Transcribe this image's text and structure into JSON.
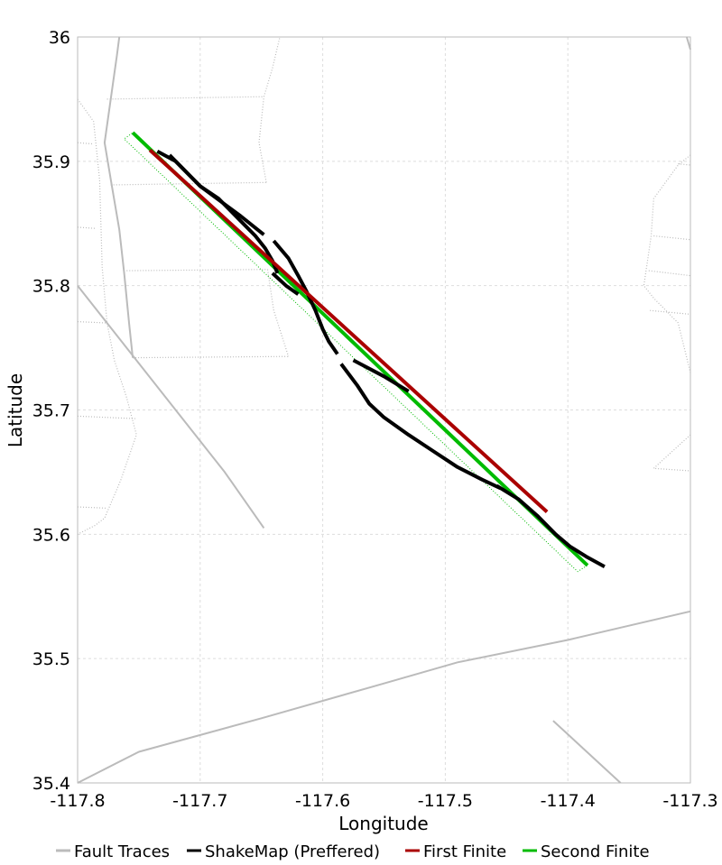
{
  "chart_data": {
    "type": "line",
    "title": "",
    "xlabel": "Longitude",
    "ylabel": "Latitude",
    "xlim": [
      -117.8,
      -117.3
    ],
    "ylim": [
      35.4,
      36.0
    ],
    "xticks": [
      -117.8,
      -117.7,
      -117.6,
      -117.5,
      -117.4,
      -117.3
    ],
    "yticks": [
      35.4,
      35.5,
      35.6,
      35.7,
      35.8,
      35.9,
      36.0
    ],
    "xtick_labels": [
      "-117.8",
      "-117.7",
      "-117.6",
      "-117.5",
      "-117.4",
      "-117.3"
    ],
    "ytick_labels": [
      "35.4",
      "35.5",
      "35.6",
      "35.7",
      "35.8",
      "35.9",
      "36"
    ],
    "grid": true,
    "legend_position": "bottom",
    "legend": [
      {
        "name": "Fault Traces",
        "color": "#bbbbbb"
      },
      {
        "name": "ShakeMap (Preffered)",
        "color": "#000000"
      },
      {
        "name": "First Finite",
        "color": "#aa0000"
      },
      {
        "name": "Second Finite",
        "color": "#00bb00"
      }
    ],
    "series": [
      {
        "key": "fault_traces",
        "color": "#bbbbbb",
        "segments": [
          [
            [
              -117.766,
              36.0
            ],
            [
              -117.768,
              35.985
            ],
            [
              -117.778,
              35.915
            ],
            [
              -117.772,
              35.88
            ],
            [
              -117.766,
              35.845
            ],
            [
              -117.762,
              35.81
            ],
            [
              -117.758,
              35.77
            ],
            [
              -117.755,
              35.742
            ]
          ],
          [
            [
              -117.8,
              35.8
            ],
            [
              -117.76,
              35.75
            ],
            [
              -117.72,
              35.7
            ],
            [
              -117.68,
              35.65
            ],
            [
              -117.648,
              35.605
            ]
          ],
          [
            [
              -117.8,
              35.4
            ],
            [
              -117.75,
              35.425
            ],
            [
              -117.65,
              35.452
            ],
            [
              -117.55,
              35.48
            ],
            [
              -117.49,
              35.497
            ],
            [
              -117.4,
              35.515
            ],
            [
              -117.3,
              35.538
            ]
          ],
          [
            [
              -117.412,
              35.45
            ],
            [
              -117.357,
              35.4
            ]
          ],
          [
            [
              -117.303,
              36.0
            ],
            [
              -117.3,
              35.99
            ]
          ]
        ]
      },
      {
        "key": "fault_traces_minor",
        "color": "#bbbbbb",
        "segments": [
          [
            [
              -117.8,
              35.95
            ],
            [
              -117.787,
              35.932
            ],
            [
              -117.782,
              35.885
            ],
            [
              -117.78,
              35.815
            ],
            [
              -117.776,
              35.77
            ],
            [
              -117.77,
              35.74
            ],
            [
              -117.76,
              35.71
            ],
            [
              -117.752,
              35.68
            ],
            [
              -117.765,
              35.643
            ],
            [
              -117.778,
              35.613
            ],
            [
              -117.786,
              35.607
            ],
            [
              -117.8,
              35.6
            ]
          ],
          [
            [
              -117.8,
              35.915
            ],
            [
              -117.788,
              35.914
            ]
          ],
          [
            [
              -117.8,
              35.847
            ],
            [
              -117.785,
              35.846
            ]
          ],
          [
            [
              -117.8,
              35.771
            ],
            [
              -117.777,
              35.77
            ]
          ],
          [
            [
              -117.8,
              35.695
            ],
            [
              -117.753,
              35.693
            ]
          ],
          [
            [
              -117.8,
              35.622
            ],
            [
              -117.776,
              35.621
            ]
          ],
          [
            [
              -117.776,
              35.95
            ],
            [
              -117.648,
              35.952
            ]
          ],
          [
            [
              -117.773,
              35.881
            ],
            [
              -117.646,
              35.883
            ]
          ],
          [
            [
              -117.76,
              35.812
            ],
            [
              -117.645,
              35.813
            ]
          ],
          [
            [
              -117.755,
              35.742
            ],
            [
              -117.628,
              35.743
            ]
          ],
          [
            [
              -117.648,
              35.952
            ],
            [
              -117.641,
              35.975
            ],
            [
              -117.635,
              36.0
            ]
          ],
          [
            [
              -117.646,
              35.883
            ],
            [
              -117.652,
              35.915
            ],
            [
              -117.648,
              35.952
            ]
          ],
          [
            [
              -117.645,
              35.813
            ],
            [
              -117.64,
              35.78
            ],
            [
              -117.628,
              35.743
            ]
          ],
          [
            [
              -117.3,
              35.905
            ],
            [
              -117.31,
              35.897
            ],
            [
              -117.33,
              35.87
            ],
            [
              -117.332,
              35.84
            ],
            [
              -117.335,
              35.82
            ],
            [
              -117.338,
              35.8
            ],
            [
              -117.33,
              35.79
            ],
            [
              -117.31,
              35.77
            ],
            [
              -117.305,
              35.75
            ],
            [
              -117.3,
              35.73
            ]
          ],
          [
            [
              -117.33,
              35.84
            ],
            [
              -117.3,
              35.837
            ]
          ],
          [
            [
              -117.334,
              35.812
            ],
            [
              -117.3,
              35.808
            ]
          ],
          [
            [
              -117.333,
              35.78
            ],
            [
              -117.3,
              35.777
            ]
          ],
          [
            [
              -117.31,
              35.898
            ],
            [
              -117.3,
              35.897
            ]
          ],
          [
            [
              -117.3,
              35.68
            ],
            [
              -117.33,
              35.653
            ],
            [
              -117.3,
              35.651
            ]
          ]
        ]
      },
      {
        "key": "shakemap",
        "name": "ShakeMap (Preffered)",
        "color": "#000000",
        "segments": [
          [
            [
              -117.735,
              35.908
            ],
            [
              -117.72,
              35.9
            ],
            [
              -117.71,
              35.89
            ],
            [
              -117.7,
              35.88
            ],
            [
              -117.685,
              35.87
            ],
            [
              -117.675,
              35.86
            ],
            [
              -117.665,
              35.85
            ],
            [
              -117.655,
              35.84
            ],
            [
              -117.647,
              35.83
            ],
            [
              -117.641,
              35.82
            ],
            [
              -117.637,
              35.81
            ]
          ],
          [
            [
              -117.725,
              35.905
            ],
            [
              -117.7,
              35.88
            ],
            [
              -117.667,
              35.856
            ],
            [
              -117.648,
              35.841
            ]
          ],
          [
            [
              -117.64,
              35.836
            ],
            [
              -117.628,
              35.822
            ],
            [
              -117.62,
              35.808
            ],
            [
              -117.613,
              35.795
            ],
            [
              -117.606,
              35.78
            ],
            [
              -117.6,
              35.765
            ],
            [
              -117.595,
              35.755
            ],
            [
              -117.588,
              35.745
            ]
          ],
          [
            [
              -117.641,
              35.81
            ],
            [
              -117.63,
              35.8
            ],
            [
              -117.62,
              35.793
            ]
          ],
          [
            [
              -117.585,
              35.737
            ],
            [
              -117.572,
              35.72
            ],
            [
              -117.562,
              35.705
            ],
            [
              -117.55,
              35.694
            ],
            [
              -117.53,
              35.68
            ],
            [
              -117.51,
              35.667
            ],
            [
              -117.49,
              35.654
            ],
            [
              -117.47,
              35.644
            ],
            [
              -117.455,
              35.637
            ]
          ],
          [
            [
              -117.575,
              35.74
            ],
            [
              -117.55,
              35.727
            ],
            [
              -117.53,
              35.715
            ]
          ],
          [
            [
              -117.458,
              35.639
            ],
            [
              -117.44,
              35.628
            ],
            [
              -117.425,
              35.615
            ],
            [
              -117.41,
              35.6
            ],
            [
              -117.398,
              35.59
            ],
            [
              -117.385,
              35.582
            ],
            [
              -117.37,
              35.574
            ]
          ]
        ]
      },
      {
        "key": "first_finite",
        "name": "First Finite",
        "color": "#aa0000",
        "segments": [
          [
            [
              -117.741,
              35.909
            ],
            [
              -117.417,
              35.618
            ]
          ]
        ]
      },
      {
        "key": "second_finite",
        "name": "Second Finite",
        "color": "#00bb00",
        "segments": [
          [
            [
              -117.755,
              35.923
            ],
            [
              -117.384,
              35.575
            ]
          ]
        ]
      },
      {
        "key": "second_finite_outline",
        "color": "#00bb00",
        "segments": [
          [
            [
              -117.755,
              35.923
            ],
            [
              -117.384,
              35.575
            ],
            [
              -117.392,
              35.57
            ],
            [
              -117.762,
              35.918
            ],
            [
              -117.755,
              35.923
            ]
          ]
        ]
      }
    ]
  }
}
